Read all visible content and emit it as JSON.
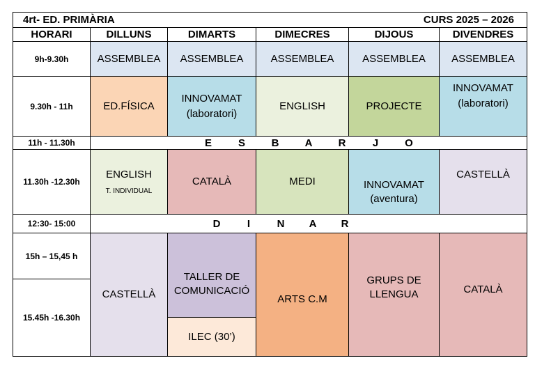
{
  "header": {
    "title": "4rt- ED. PRIMÀRIA",
    "course": "CURS 2025 – 2026"
  },
  "columns": [
    "HORARI",
    "DILLUNS",
    "DIMARTS",
    "DIMECRES",
    "DIJOUS",
    "DIVENDRES"
  ],
  "times": [
    "9h-9.30h",
    "9.30h - 11h",
    "11h - 11.30h",
    "11.30h -12.30h",
    "12:30- 15:00",
    "15h – 15,45 h",
    "15.45h -16.30h"
  ],
  "row1": {
    "mon": "ASSEMBLEA",
    "tue": "ASSEMBLEA",
    "wed": "ASSEMBLEA",
    "thu": "ASSEMBLEA",
    "fri": "ASSEMBLEA"
  },
  "row2": {
    "mon": "ED.FÍSICA",
    "tue_a": "INNOVAMAT",
    "tue_b": "(laboratori)",
    "wed": "ENGLISH",
    "thu": "PROJECTE",
    "fri_a": "INNOVAMAT",
    "fri_b": "(laboratori)"
  },
  "break_letters": [
    "E",
    "S",
    "B",
    "A",
    "R",
    "J",
    "O"
  ],
  "row4": {
    "mon_a": "ENGLISH",
    "mon_b": "T. INDIVIDUAL",
    "tue": "CATALÀ",
    "wed": "MEDI",
    "thu_a": "INNOVAMAT",
    "thu_b": "(aventura)",
    "fri": "CASTELLÀ"
  },
  "lunch_letters": [
    "D",
    "I",
    "N",
    "A",
    "R"
  ],
  "afternoon": {
    "mon": "CASTELLÀ",
    "tue_a": "TALLER DE",
    "tue_b": "COMUNICACIÓ",
    "tue_c": "ILEC (30’)",
    "wed": "ARTS C.M",
    "thu_a": "GRUPS DE",
    "thu_b": "LLENGUA",
    "fri": "CATALÀ"
  },
  "colors": {
    "assemblea": "#dce6f2",
    "edfisica": "#fbd5b5",
    "innovamat": "#b7dde8",
    "english": "#ebf1de",
    "projecte": "#c3d69b",
    "catala": "#e6b9b8",
    "medi": "#d7e4bd",
    "castella": "#e5e0ec",
    "taller": "#ccc1da",
    "ilec": "#fde9d9",
    "arts": "#f4b183"
  }
}
